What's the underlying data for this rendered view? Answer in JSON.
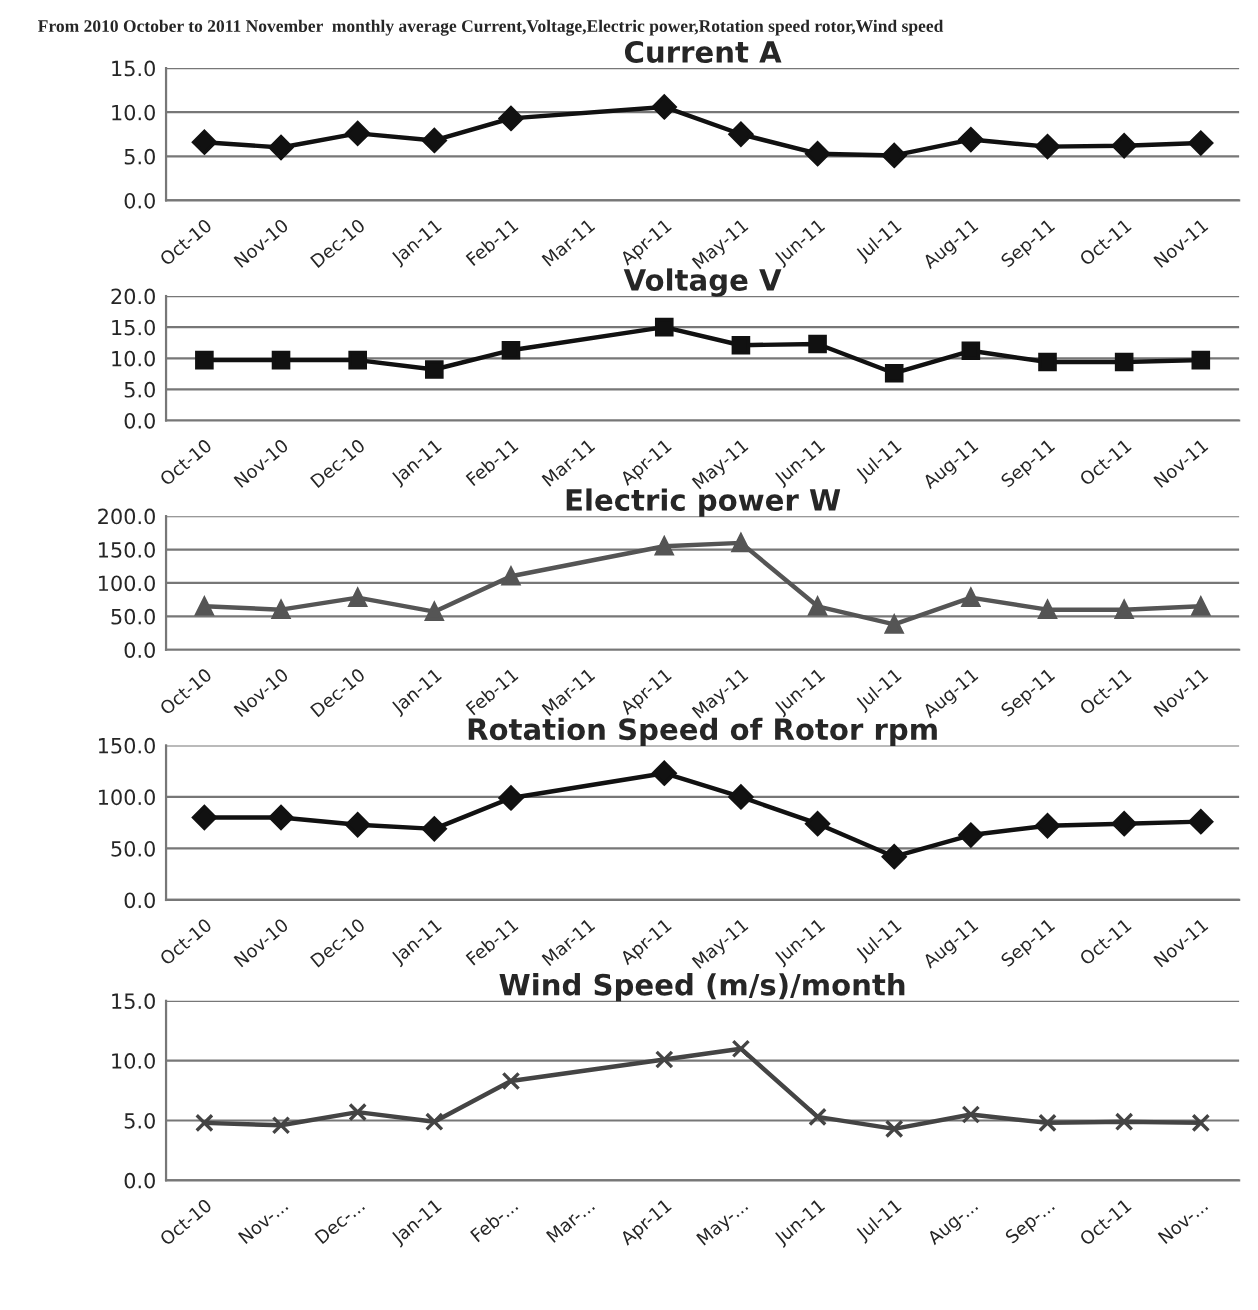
{
  "chart_data": [
    {
      "type": "line",
      "title": "Current A",
      "annotations": [
        "From 2010 October to 2011 November  monthly average Current,Voltage,Electric power,Rotation speed rotor,Wind speed"
      ],
      "categories": [
        "Oct-10",
        "Nov-10",
        "Dec-10",
        "Jan-11",
        "Feb-11",
        "Mar-11",
        "Apr-11",
        "May-11",
        "Jun-11",
        "Jul-11",
        "Aug-11",
        "Sep-11",
        "Oct-11",
        "Nov-11"
      ],
      "series": [
        {
          "color": "#111111",
          "values": [
            6.6,
            6.0,
            7.6,
            6.8,
            9.3,
            null,
            10.6,
            7.5,
            5.3,
            5.1,
            6.9,
            6.1,
            6.2,
            6.5
          ]
        }
      ],
      "ylim": [
        0,
        15
      ],
      "yticks": [
        {
          "value": 0,
          "label": "0.0"
        },
        {
          "value": 5,
          "label": "5.0"
        },
        {
          "value": 10,
          "label": "10.0"
        },
        {
          "value": 15,
          "label": "15.0"
        }
      ],
      "grid": "y",
      "marker": "diamond",
      "line_style": "solid"
    },
    {
      "type": "line",
      "title": "Voltage V",
      "categories": [
        "Oct-10",
        "Nov-10",
        "Dec-10",
        "Jan-11",
        "Feb-11",
        "Mar-11",
        "Apr-11",
        "May-11",
        "Jun-11",
        "Jul-11",
        "Aug-11",
        "Sep-11",
        "Oct-11",
        "Nov-11"
      ],
      "series": [
        {
          "color": "#111111",
          "values": [
            9.7,
            9.7,
            9.7,
            8.2,
            11.3,
            null,
            15.0,
            12.1,
            12.3,
            7.6,
            11.2,
            9.4,
            9.4,
            9.7
          ]
        }
      ],
      "ylim": [
        0,
        20
      ],
      "yticks": [
        {
          "value": 0,
          "label": "0.0"
        },
        {
          "value": 5,
          "label": "5.0"
        },
        {
          "value": 10,
          "label": "10.0"
        },
        {
          "value": 15,
          "label": "15.0"
        },
        {
          "value": 20,
          "label": "20.0"
        }
      ],
      "grid": "y",
      "marker": "square",
      "line_style": "solid"
    },
    {
      "type": "line",
      "title": "Electric power W",
      "categories": [
        "Oct-10",
        "Nov-10",
        "Dec-10",
        "Jan-11",
        "Feb-11",
        "Mar-11",
        "Apr-11",
        "May-11",
        "Jun-11",
        "Jul-11",
        "Aug-11",
        "Sep-11",
        "Oct-11",
        "Nov-11"
      ],
      "series": [
        {
          "color": "#555555",
          "values": [
            65,
            60,
            78,
            57,
            110,
            null,
            155,
            160,
            65,
            38,
            78,
            60,
            60,
            65
          ]
        }
      ],
      "ylim": [
        0,
        200
      ],
      "yticks": [
        {
          "value": 0,
          "label": "0.0"
        },
        {
          "value": 50,
          "label": "50.0"
        },
        {
          "value": 100,
          "label": "100.0"
        },
        {
          "value": 150,
          "label": "150.0"
        },
        {
          "value": 200,
          "label": "200.0"
        }
      ],
      "grid": "y",
      "marker": "triangle",
      "line_style": "solid"
    },
    {
      "type": "line",
      "title": "Rotation Speed of Rotor rpm",
      "categories": [
        "Oct-10",
        "Nov-10",
        "Dec-10",
        "Jan-11",
        "Feb-11",
        "Mar-11",
        "Apr-11",
        "May-11",
        "Jun-11",
        "Jul-11",
        "Aug-11",
        "Sep-11",
        "Oct-11",
        "Nov-11"
      ],
      "series": [
        {
          "color": "#111111",
          "values": [
            80,
            80,
            73,
            69,
            99,
            null,
            123,
            100,
            74,
            42,
            63,
            72,
            74,
            76
          ]
        }
      ],
      "ylim": [
        0,
        150
      ],
      "yticks": [
        {
          "value": 0,
          "label": "0.0"
        },
        {
          "value": 50,
          "label": "50.0"
        },
        {
          "value": 100,
          "label": "100.0"
        },
        {
          "value": 150,
          "label": "150.0"
        }
      ],
      "grid": "y",
      "marker": "diamond",
      "line_style": "solid"
    },
    {
      "type": "line",
      "title": "Wind Speed (m/s)/month",
      "categories": [
        "Oct-10",
        "Nov-...",
        "Dec-...",
        "Jan-11",
        "Feb-...",
        "Mar-...",
        "Apr-11",
        "May-...",
        "Jun-11",
        "Jul-11",
        "Aug-...",
        "Sep-...",
        "Oct-11",
        "Nov-..."
      ],
      "series": [
        {
          "color": "#444444",
          "values": [
            4.8,
            4.6,
            5.7,
            4.9,
            8.3,
            null,
            10.1,
            11.0,
            5.3,
            4.3,
            5.5,
            4.8,
            4.9,
            4.8
          ]
        }
      ],
      "ylim": [
        0,
        15
      ],
      "yticks": [
        {
          "value": 0,
          "label": "0.0"
        },
        {
          "value": 5,
          "label": "5.0"
        },
        {
          "value": 10,
          "label": "10.0"
        },
        {
          "value": 15,
          "label": "15.0"
        }
      ],
      "grid": "y",
      "marker": "cross",
      "line_style": "solid"
    }
  ]
}
